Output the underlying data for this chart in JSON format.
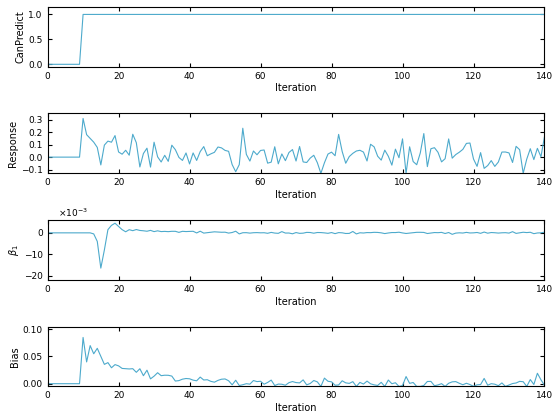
{
  "n_iterations": 141,
  "line_color": "#4DAACC",
  "line_width": 0.8,
  "background_color": "#ffffff",
  "fig_width": 5.6,
  "fig_height": 4.2,
  "axes": [
    {
      "ylabel": "CanPredict",
      "xlabel": "Iteration",
      "ylim": [
        -0.05,
        1.15
      ],
      "yticks": [
        0,
        0.5,
        1
      ],
      "xlim": [
        0,
        140
      ],
      "xticks": [
        0,
        20,
        40,
        60,
        80,
        100,
        120,
        140
      ]
    },
    {
      "ylabel": "Response",
      "xlabel": "Iteration",
      "ylim": [
        -0.13,
        0.35
      ],
      "yticks": [
        -0.1,
        0,
        0.1,
        0.2,
        0.3
      ],
      "xlim": [
        0,
        140
      ],
      "xticks": [
        0,
        20,
        40,
        60,
        80,
        100,
        120,
        140
      ]
    },
    {
      "ylabel": "$\\beta_1$",
      "xlabel": "Iteration",
      "ylim": [
        -22,
        6
      ],
      "yticks": [
        -20,
        -10,
        0
      ],
      "xlim": [
        0,
        140
      ],
      "xticks": [
        0,
        20,
        40,
        60,
        80,
        100,
        120,
        140
      ],
      "multiplier_label": "$\\times10^{-3}$"
    },
    {
      "ylabel": "Bias",
      "xlabel": "Iteration",
      "ylim": [
        -0.005,
        0.105
      ],
      "yticks": [
        0,
        0.05,
        0.1
      ],
      "xlim": [
        0,
        140
      ],
      "xticks": [
        0,
        20,
        40,
        60,
        80,
        100,
        120,
        140
      ]
    }
  ]
}
